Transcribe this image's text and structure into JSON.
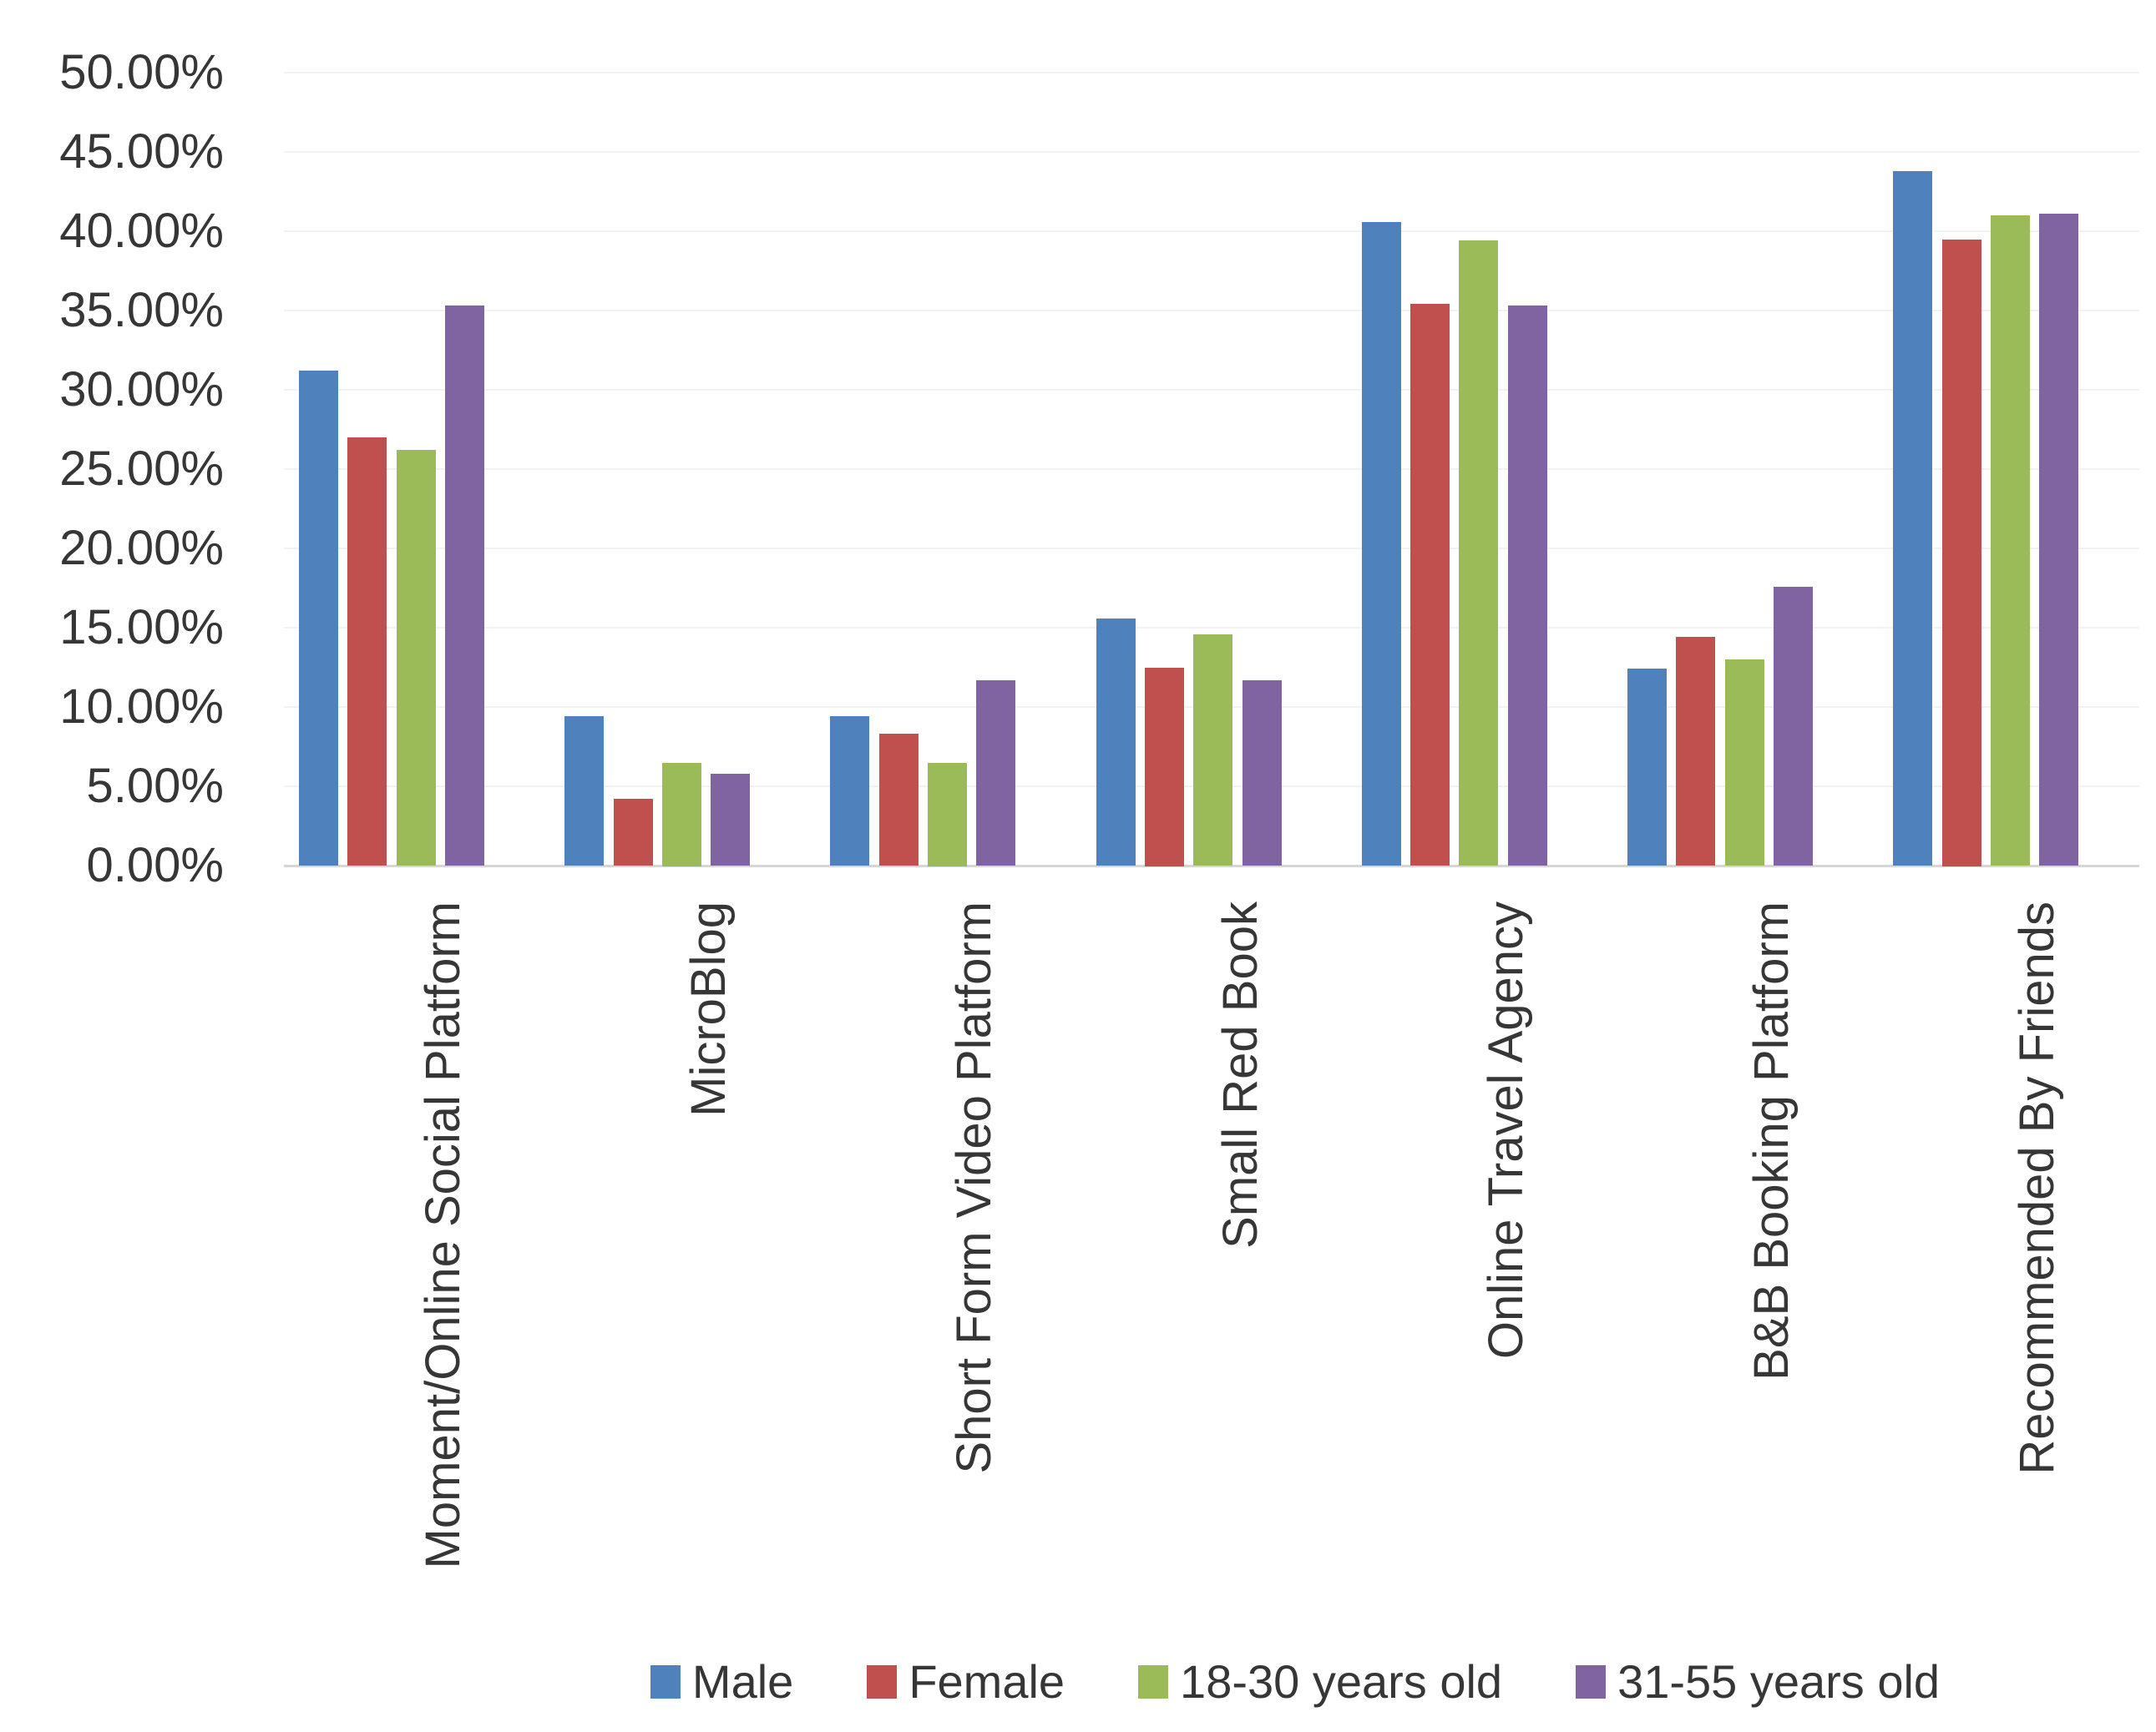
{
  "chart_data": {
    "type": "bar",
    "title": "",
    "xlabel": "",
    "ylabel": "",
    "ylim": [
      0,
      50
    ],
    "grid": true,
    "legend_position": "bottom",
    "y_ticks": [
      "0.00%",
      "5.00%",
      "10.00%",
      "15.00%",
      "20.00%",
      "25.00%",
      "30.00%",
      "35.00%",
      "40.00%",
      "45.00%",
      "50.00%"
    ],
    "categories": [
      "Moment/Online Social Platform",
      "MicroBlog",
      "Short Form Video Platform",
      "Small Red Book",
      "Online Travel Agency",
      "B&B Booking Platform",
      "Recommended By Friends"
    ],
    "series": [
      {
        "name": "Male",
        "color": "#4F81BD",
        "values": [
          31.2,
          9.4,
          9.4,
          15.6,
          40.6,
          12.4,
          43.8
        ]
      },
      {
        "name": "Female",
        "color": "#C0504D",
        "values": [
          27.0,
          4.2,
          8.3,
          12.5,
          35.4,
          14.4,
          39.5
        ]
      },
      {
        "name": "18-30 years old",
        "color": "#9BBB59",
        "values": [
          26.2,
          6.5,
          6.5,
          14.6,
          39.4,
          13.0,
          41.0
        ]
      },
      {
        "name": "31-55 years old",
        "color": "#8064A2",
        "values": [
          35.3,
          5.8,
          11.7,
          11.7,
          35.3,
          17.6,
          41.1
        ]
      }
    ]
  },
  "colors": {
    "background": "#FFFFFF",
    "grid": "#F2F2F2",
    "axis_line": "#D6D6D6",
    "text": "#363636"
  }
}
